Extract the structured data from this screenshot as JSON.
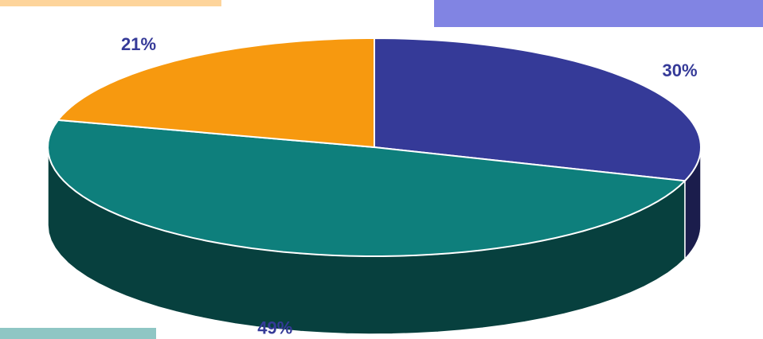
{
  "chart_data": {
    "type": "pie",
    "values": [
      30,
      49,
      21
    ],
    "value_labels": [
      "30%",
      "49%",
      "21%"
    ],
    "colors": [
      "#353a98",
      "#0e7f7c",
      "#f7990f"
    ]
  }
}
